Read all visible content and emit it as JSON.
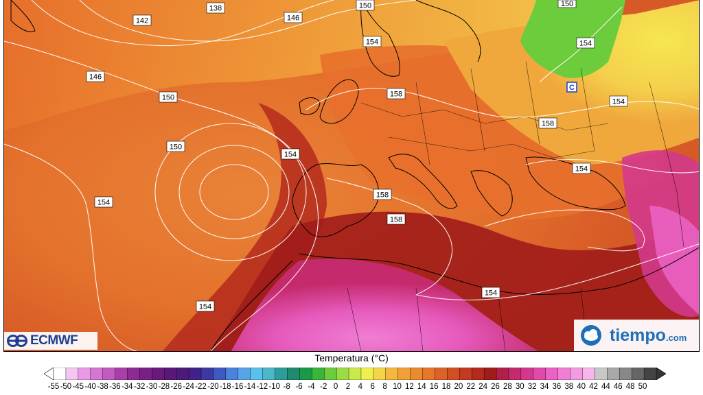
{
  "map": {
    "isobar_labels": [
      "138",
      "142",
      "146",
      "146",
      "150",
      "150",
      "150",
      "150",
      "154",
      "154",
      "154",
      "154",
      "154",
      "154",
      "154",
      "154",
      "158",
      "158",
      "158",
      "158"
    ],
    "low_marker": "C"
  },
  "logos": {
    "left": "ECMWF",
    "right": "tiempo",
    "right_suffix": ".com"
  },
  "legend": {
    "title": "Temperatura (°C)",
    "ticks": [
      "-55",
      "-50",
      "-45",
      "-40",
      "-38",
      "-36",
      "-34",
      "-32",
      "-30",
      "-28",
      "-26",
      "-24",
      "-22",
      "-20",
      "-18",
      "-16",
      "-14",
      "-12",
      "-10",
      "-8",
      "-6",
      "-4",
      "-2",
      "0",
      "2",
      "4",
      "6",
      "8",
      "10",
      "12",
      "14",
      "16",
      "18",
      "20",
      "22",
      "24",
      "26",
      "28",
      "30",
      "32",
      "34",
      "36",
      "38",
      "40",
      "42",
      "44",
      "46",
      "48",
      "50"
    ],
    "colors": [
      "#ffffff",
      "#f4c6f0",
      "#e89ae4",
      "#d576d4",
      "#c25ac0",
      "#a93ea8",
      "#8e2a94",
      "#7a1f86",
      "#6a1a7c",
      "#5c1878",
      "#4c1a7a",
      "#42228a",
      "#3c3aa0",
      "#3c5ac0",
      "#4a82dc",
      "#56a4e8",
      "#5ac0ec",
      "#4ab8c8",
      "#2e9c9a",
      "#1e8a6e",
      "#1a9a46",
      "#3ab43c",
      "#6ccc3c",
      "#9adc44",
      "#c8ea4a",
      "#eef04e",
      "#f6d448",
      "#f4b83e",
      "#f0a036",
      "#ec8a30",
      "#e6762c",
      "#de6228",
      "#d44e24",
      "#c43a20",
      "#b42a1c",
      "#a01c1a",
      "#b02048",
      "#c42a6c",
      "#d4388c",
      "#e04aa8",
      "#ea62c2",
      "#f07ed4",
      "#f49ae0",
      "#f6b6e8",
      "#c8c8c8",
      "#a8a8a8",
      "#888888",
      "#666666",
      "#444444"
    ]
  }
}
